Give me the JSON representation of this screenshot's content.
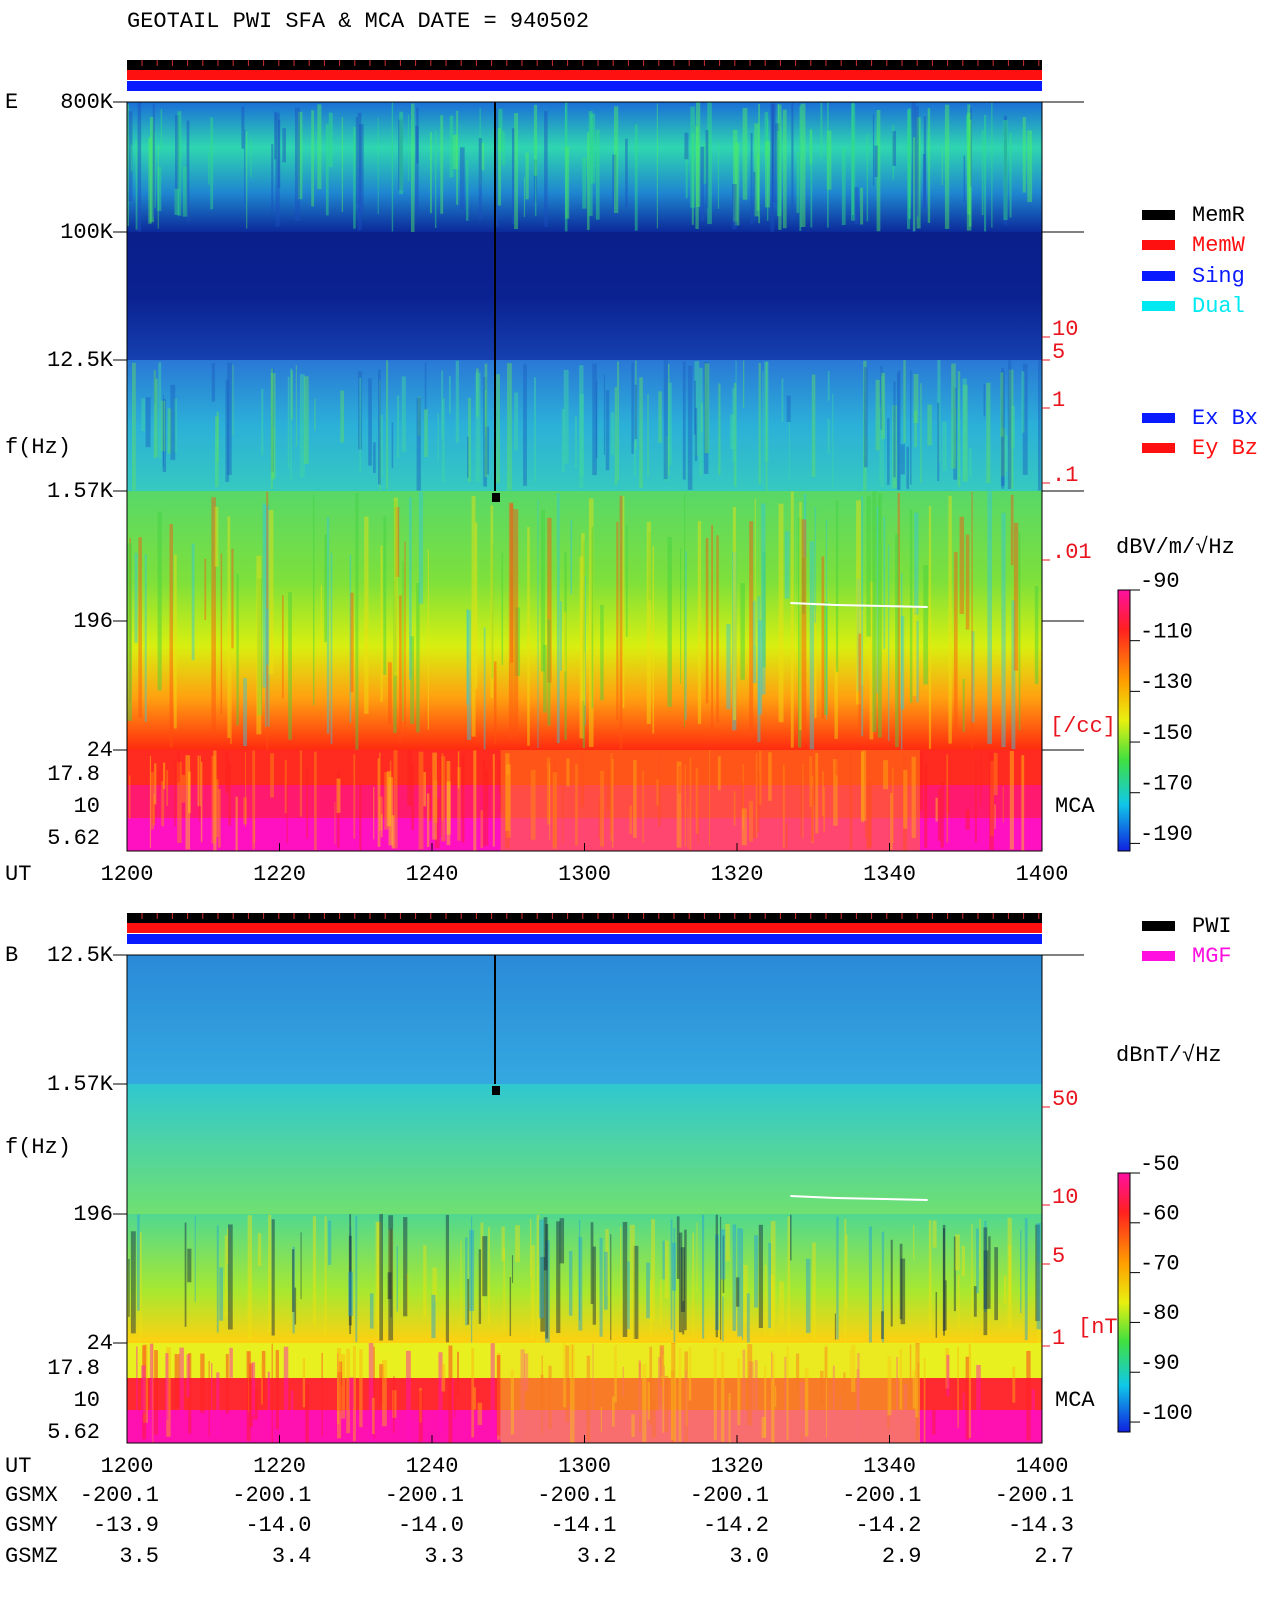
{
  "header": {
    "title": "GEOTAIL  PWI SFA & MCA   DATE = 940502"
  },
  "time_axis": {
    "label": "UT",
    "ticks": [
      1200,
      1220,
      1240,
      1300,
      1320,
      1340,
      1400
    ]
  },
  "panels": [
    {
      "label": "E",
      "axis_label": "f(Hz)",
      "freq_ticks": [
        "800K",
        "100K",
        "12.5K",
        "1.57K",
        "196",
        "24"
      ],
      "mca_ticks": [
        "17.8",
        "10",
        "5.62"
      ],
      "mca_label": "MCA",
      "density_ticks": [
        "10",
        "5",
        "1",
        ".1",
        ".01"
      ],
      "density_unit": "[/cc]",
      "colorbar": {
        "unit": "dBV/m/√Hz",
        "lim": [
          -90,
          -193
        ],
        "ticks": [
          -90,
          -110,
          -130,
          -150,
          -170,
          -190
        ]
      }
    },
    {
      "label": "B",
      "axis_label": "f(Hz)",
      "freq_ticks": [
        "12.5K",
        "1.57K",
        "196",
        "24"
      ],
      "mca_ticks": [
        "17.8",
        "10",
        "5.62"
      ],
      "mca_label": "MCA",
      "density_ticks": [
        "50",
        "10",
        "5",
        "1"
      ],
      "density_unit": "[nT]",
      "colorbar": {
        "unit": "dBnT/√Hz",
        "lim": [
          -50,
          -102
        ],
        "ticks": [
          -50,
          -60,
          -70,
          -80,
          -90,
          -100
        ]
      }
    }
  ],
  "legend": {
    "mode": [
      {
        "name": "MemR",
        "color": "#000000"
      },
      {
        "name": "MemW",
        "color": "#ff1010"
      },
      {
        "name": "Sing",
        "color": "#0a1aff"
      },
      {
        "name": "Dual",
        "color": "#00e8f0"
      }
    ],
    "antenna": [
      {
        "name": "Ex Bx",
        "color": "#0a1aff"
      },
      {
        "name": "Ey Bz",
        "color": "#ff1010"
      }
    ],
    "source": [
      {
        "name": "PWI",
        "color": "#000000"
      },
      {
        "name": "MGF",
        "color": "#ff10e0"
      }
    ]
  },
  "orbit": {
    "rows": [
      {
        "name": "GSMX",
        "values": [
          "-200.1",
          "-200.1",
          "-200.1",
          "-200.1",
          "-200.1",
          "-200.1",
          "-200.1"
        ]
      },
      {
        "name": "GSMY",
        "values": [
          "-13.9",
          "-14.0",
          "-14.0",
          "-14.1",
          "-14.2",
          "-14.2",
          "-14.3"
        ]
      },
      {
        "name": "GSMZ",
        "values": [
          "3.5",
          "3.4",
          "3.3",
          "3.2",
          "3.0",
          "2.9",
          "2.7"
        ]
      }
    ]
  }
}
